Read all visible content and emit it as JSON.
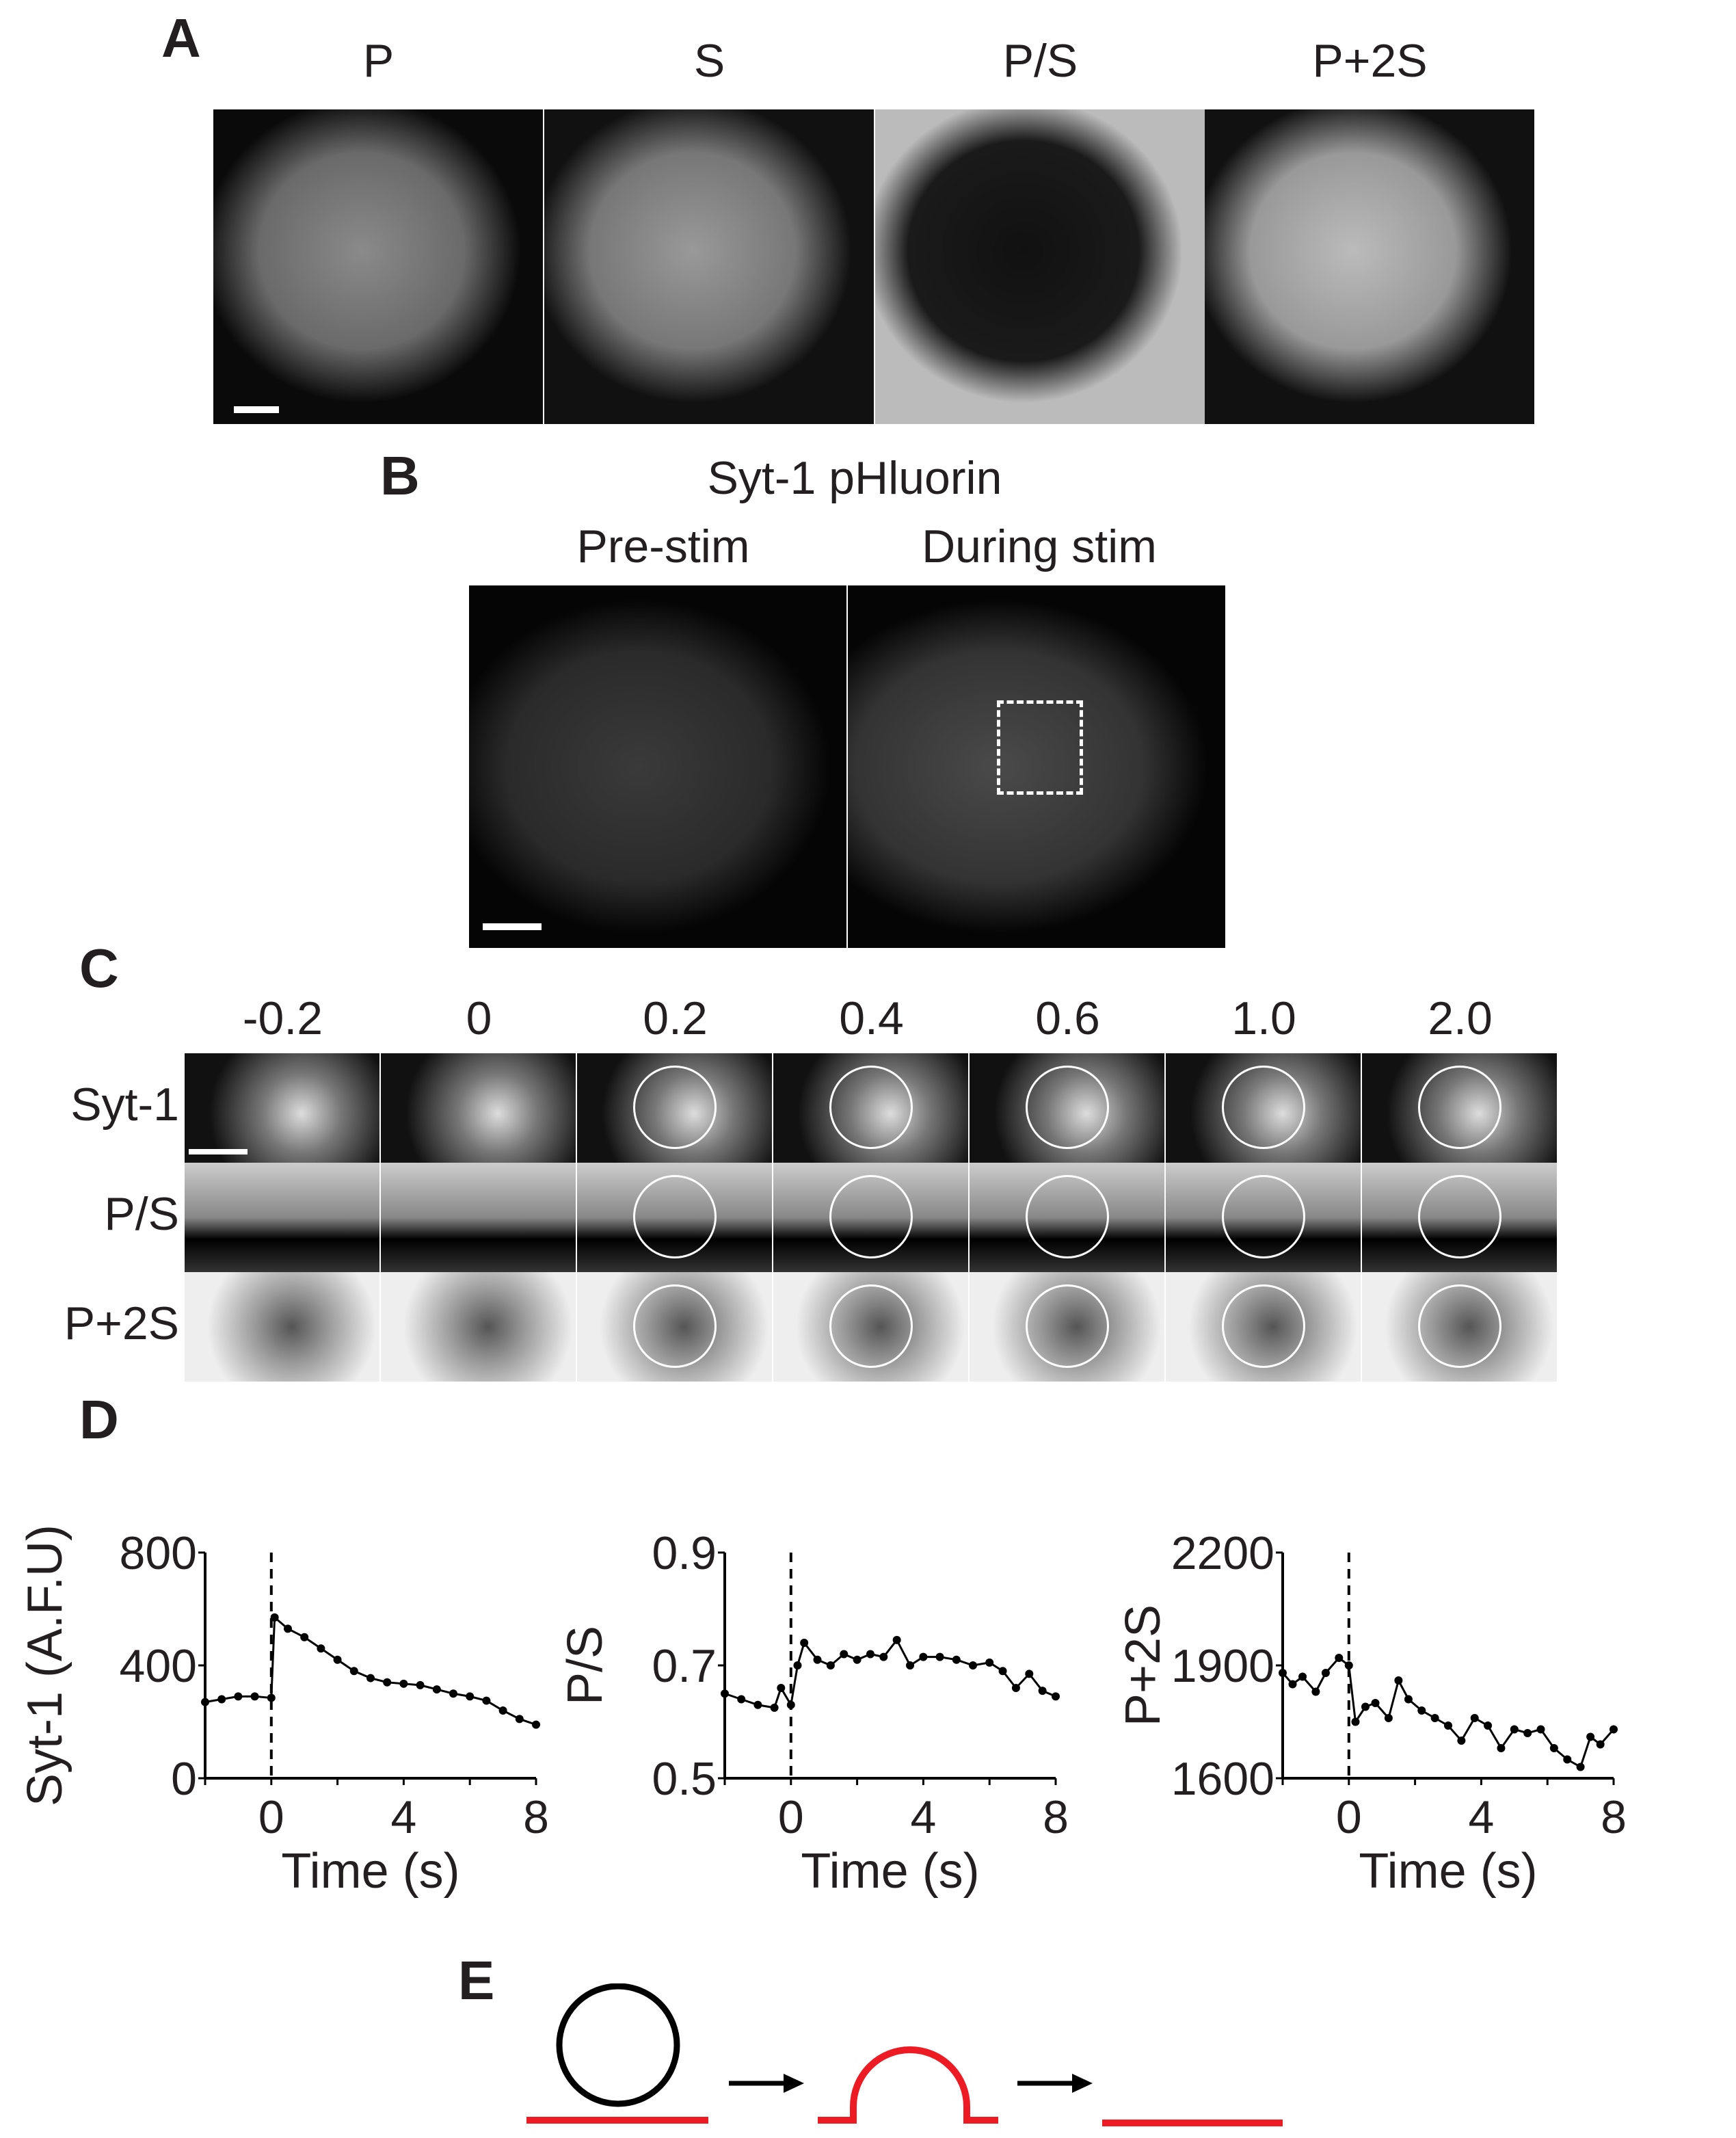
{
  "panels": {
    "a": "A",
    "b": "B",
    "c": "C",
    "d": "D",
    "e": "E"
  },
  "panel_a": {
    "labels": [
      "P",
      "S",
      "P/S",
      "P+2S"
    ]
  },
  "panel_b": {
    "title": "Syt-1 pHluorin",
    "labels": [
      "Pre-stim",
      "During stim"
    ]
  },
  "panel_c": {
    "times": [
      "-0.2",
      "0",
      "0.2",
      "0.4",
      "0.6",
      "1.0",
      "2.0"
    ],
    "rows": [
      "Syt-1",
      "P/S",
      "P+2S"
    ]
  },
  "chart_data": [
    {
      "type": "line",
      "xlabel": "Time (s)",
      "ylabel": "Syt-1 (A.F.U)",
      "xlim": [
        -2,
        8
      ],
      "ylim": [
        0,
        800
      ],
      "xticks": [
        0,
        4,
        8
      ],
      "yticks": [
        0,
        400,
        800
      ],
      "event_line_x": 0,
      "x": [
        -2,
        -1.5,
        -1,
        -0.5,
        0,
        0.1,
        0.5,
        1,
        1.5,
        2,
        2.5,
        3,
        3.5,
        4,
        4.5,
        5,
        5.5,
        6,
        6.5,
        7,
        7.5,
        8
      ],
      "y": [
        270,
        280,
        290,
        290,
        285,
        570,
        530,
        500,
        460,
        420,
        380,
        355,
        340,
        335,
        330,
        315,
        300,
        290,
        275,
        240,
        210,
        190
      ]
    },
    {
      "type": "line",
      "xlabel": "Time (s)",
      "ylabel": "P/S",
      "xlim": [
        -2,
        8
      ],
      "ylim": [
        0.5,
        0.9
      ],
      "xticks": [
        0,
        4,
        8
      ],
      "yticks": [
        0.5,
        0.7,
        0.9
      ],
      "event_line_x": 0,
      "x": [
        -2,
        -1.5,
        -1,
        -0.5,
        -0.3,
        0,
        0.2,
        0.4,
        0.8,
        1.2,
        1.6,
        2,
        2.4,
        2.8,
        3.2,
        3.6,
        4,
        4.5,
        5,
        5.5,
        6,
        6.4,
        6.8,
        7.2,
        7.6,
        8
      ],
      "y": [
        0.65,
        0.64,
        0.63,
        0.625,
        0.66,
        0.63,
        0.7,
        0.74,
        0.71,
        0.7,
        0.72,
        0.71,
        0.72,
        0.715,
        0.745,
        0.7,
        0.715,
        0.715,
        0.71,
        0.7,
        0.705,
        0.69,
        0.66,
        0.685,
        0.655,
        0.645
      ]
    },
    {
      "type": "line",
      "xlabel": "Time (s)",
      "ylabel": "P+2S",
      "xlim": [
        -2,
        8
      ],
      "ylim": [
        1600,
        2200
      ],
      "xticks": [
        0,
        4,
        8
      ],
      "yticks": [
        1600,
        1900,
        2200
      ],
      "event_line_x": 0,
      "x": [
        -2,
        -1.7,
        -1.4,
        -1,
        -0.7,
        -0.3,
        0,
        0.2,
        0.5,
        0.8,
        1.2,
        1.5,
        1.8,
        2.2,
        2.6,
        3,
        3.4,
        3.8,
        4.2,
        4.6,
        5,
        5.4,
        5.8,
        6.2,
        6.6,
        7,
        7.3,
        7.6,
        8
      ],
      "y": [
        1880,
        1850,
        1870,
        1830,
        1880,
        1920,
        1900,
        1750,
        1790,
        1800,
        1760,
        1860,
        1810,
        1780,
        1760,
        1740,
        1700,
        1760,
        1740,
        1680,
        1730,
        1720,
        1730,
        1680,
        1650,
        1630,
        1710,
        1690,
        1730
      ]
    }
  ],
  "colors": {
    "membrane": "#ed1c24",
    "vesicle": "#000000"
  }
}
